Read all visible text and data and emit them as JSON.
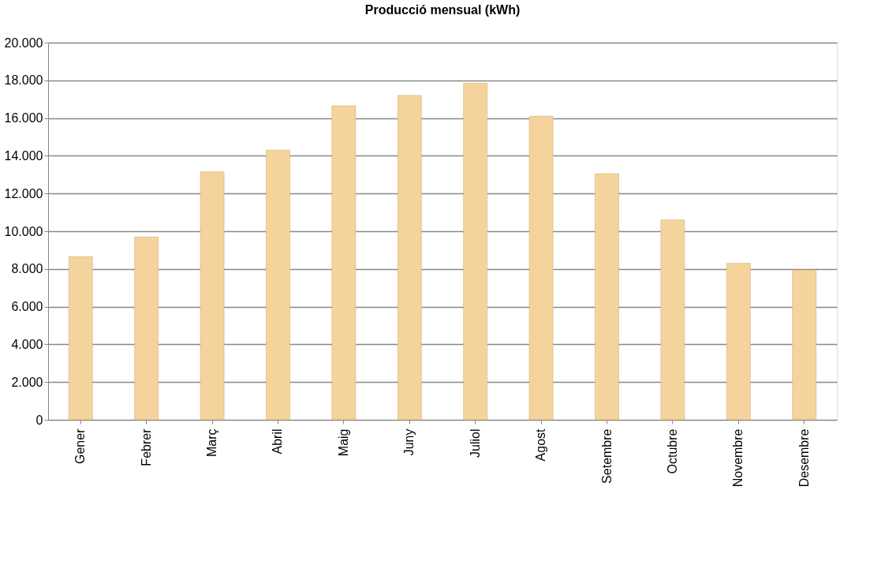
{
  "chart_data": {
    "type": "bar",
    "title": "Producció mensual (kWh)",
    "categories": [
      "Gener",
      "Febrer",
      "Març",
      "Abril",
      "Maig",
      "Juny",
      "Juliol",
      "Agost",
      "Setembre",
      "Octubre",
      "Novembre",
      "Desembre"
    ],
    "values": [
      8650,
      9700,
      13150,
      14300,
      16650,
      17200,
      17850,
      16100,
      13050,
      10600,
      8300,
      7950
    ],
    "color": "#f5d39c",
    "ylim": [
      0,
      20000
    ],
    "yticks": [
      {
        "value": 0,
        "label": "0"
      },
      {
        "value": 2000,
        "label": "2.000"
      },
      {
        "value": 4000,
        "label": "4.000"
      },
      {
        "value": 6000,
        "label": "6.000"
      },
      {
        "value": 8000,
        "label": "8.000"
      },
      {
        "value": 10000,
        "label": "10.000"
      },
      {
        "value": 12000,
        "label": "12.000"
      },
      {
        "value": 14000,
        "label": "14.000"
      },
      {
        "value": 16000,
        "label": "16.000"
      },
      {
        "value": 18000,
        "label": "18.000"
      },
      {
        "value": 20000,
        "label": "20.000"
      }
    ],
    "grid": "y"
  }
}
